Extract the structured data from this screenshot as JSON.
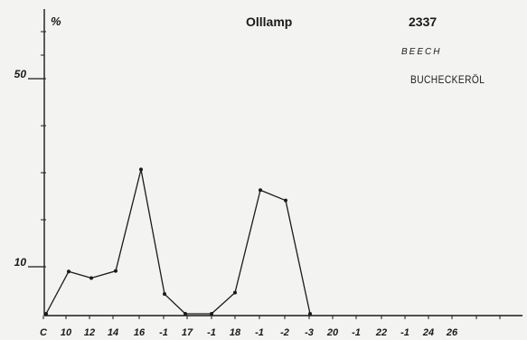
{
  "header": {
    "unit": "%",
    "title": "Olllamp",
    "code": "2337",
    "label_en": "BEECH",
    "label_de": "BUCHECKERÖL"
  },
  "colors": {
    "ink": "#1a1a1a",
    "background": "#f3f3f1"
  },
  "chart_data": {
    "type": "line",
    "title": "Olllamp",
    "ylabel": "%",
    "ylim": [
      0,
      60
    ],
    "yticks": [
      {
        "label": "50",
        "value": 50
      },
      {
        "label": "10",
        "value": 10
      }
    ],
    "xticks": [
      "C",
      "10",
      "12",
      "14",
      "16",
      "-1",
      "17",
      "-1",
      "18",
      "-1",
      "-2",
      "-3",
      "20",
      "-1",
      "22",
      "-1",
      "24",
      "26"
    ],
    "series": [
      {
        "values": [
          {
            "x": "C",
            "y": 0
          },
          {
            "x": "10",
            "y": 9
          },
          {
            "x": "12",
            "y": 7.6
          },
          {
            "x": "14",
            "y": 9.1
          },
          {
            "x": "16",
            "y": 30.7
          },
          {
            "x": "16:-1",
            "y": 4.2
          },
          {
            "x": "17",
            "y": 0
          },
          {
            "x": "17:-1",
            "y": 0
          },
          {
            "x": "18",
            "y": 4.5
          },
          {
            "x": "18:-1",
            "y": 26.3
          },
          {
            "x": "18:-2",
            "y": 24.1
          },
          {
            "x": "18:-3",
            "y": 0
          }
        ]
      }
    ]
  }
}
